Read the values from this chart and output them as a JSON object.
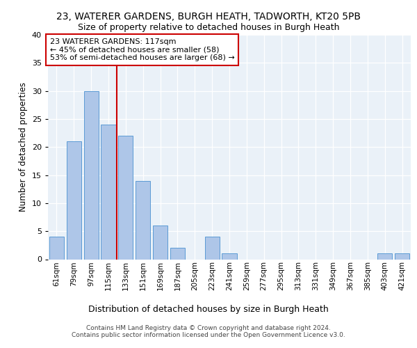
{
  "title": "23, WATERER GARDENS, BURGH HEATH, TADWORTH, KT20 5PB",
  "subtitle": "Size of property relative to detached houses in Burgh Heath",
  "xlabel": "Distribution of detached houses by size in Burgh Heath",
  "ylabel": "Number of detached properties",
  "categories": [
    "61sqm",
    "79sqm",
    "97sqm",
    "115sqm",
    "133sqm",
    "151sqm",
    "169sqm",
    "187sqm",
    "205sqm",
    "223sqm",
    "241sqm",
    "259sqm",
    "277sqm",
    "295sqm",
    "313sqm",
    "331sqm",
    "349sqm",
    "367sqm",
    "385sqm",
    "403sqm",
    "421sqm"
  ],
  "values": [
    4,
    21,
    30,
    24,
    22,
    14,
    6,
    2,
    0,
    4,
    1,
    0,
    0,
    0,
    0,
    0,
    0,
    0,
    0,
    1,
    1
  ],
  "bar_color": "#aec6e8",
  "bar_edge_color": "#5b9bd5",
  "vline_x": 3.5,
  "vline_color": "#cc0000",
  "annotation_title": "23 WATERER GARDENS: 117sqm",
  "annotation_line1": "← 45% of detached houses are smaller (58)",
  "annotation_line2": "53% of semi-detached houses are larger (68) →",
  "annotation_box_color": "#ffffff",
  "annotation_box_edge": "#cc0000",
  "ylim": [
    0,
    40
  ],
  "yticks": [
    0,
    5,
    10,
    15,
    20,
    25,
    30,
    35,
    40
  ],
  "footnote1": "Contains HM Land Registry data © Crown copyright and database right 2024.",
  "footnote2": "Contains public sector information licensed under the Open Government Licence v3.0.",
  "bg_color": "#eaf1f8"
}
